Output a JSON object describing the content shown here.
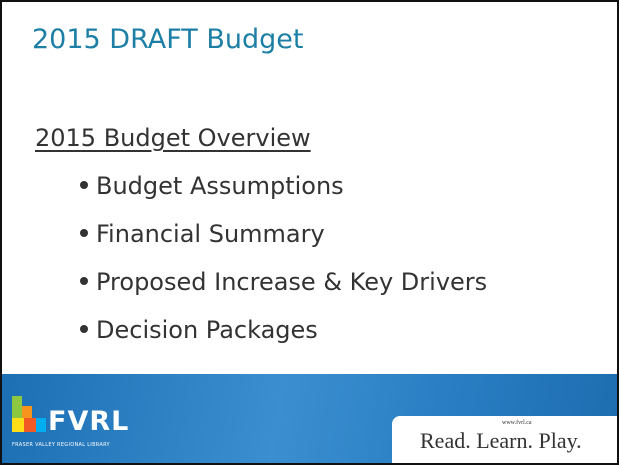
{
  "header": {
    "title": "2015 DRAFT Budget"
  },
  "content": {
    "subtitle": "2015 Budget Overview",
    "bullets": [
      "Budget Assumptions",
      "Financial  Summary",
      "Proposed Increase & Key Drivers",
      "Decision Packages"
    ]
  },
  "footer": {
    "logo": "FVRL",
    "logo_subtitle": "FRASER VALLEY REGIONAL LIBRARY",
    "url": "www.fvrl.ca",
    "tagline": "Read. Learn. Play."
  }
}
